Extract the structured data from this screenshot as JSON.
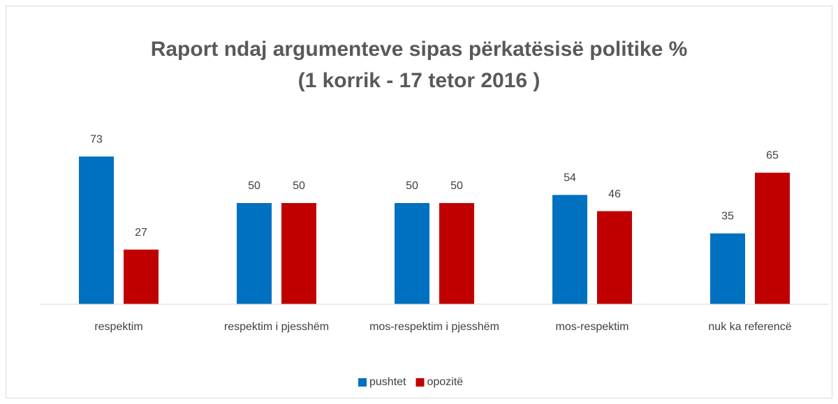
{
  "chart_data": {
    "type": "bar",
    "title": "Raport ndaj argumenteve sipas përkatësisë politike %",
    "subtitle": "(1 korrik - 17 tetor 2016 )",
    "categories": [
      "respektim",
      "respektim i pjesshëm",
      "mos-respektim i pjesshëm",
      "mos-respektim",
      "nuk ka referencë"
    ],
    "series": [
      {
        "name": "pushtet",
        "color": "#0070c0",
        "values": [
          73,
          50,
          50,
          54,
          35
        ]
      },
      {
        "name": "opozitë",
        "color": "#c00000",
        "values": [
          27,
          50,
          50,
          46,
          65
        ]
      }
    ],
    "ylim": [
      0,
      80
    ],
    "legend": "bottom"
  }
}
